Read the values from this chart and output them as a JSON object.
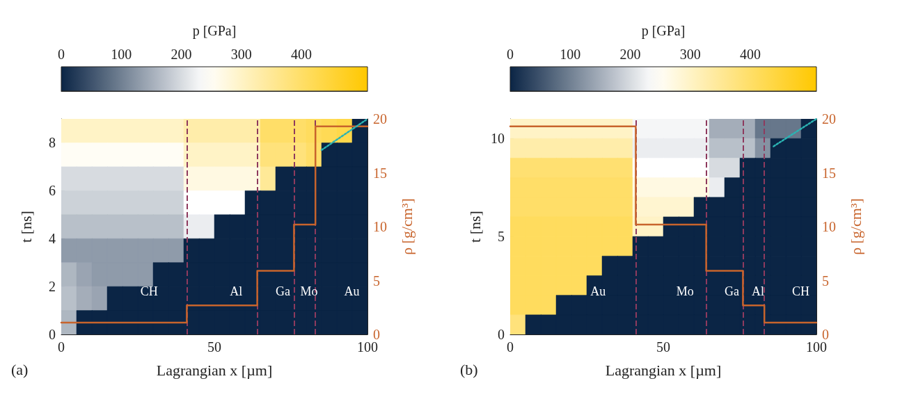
{
  "chart_data": [
    {
      "type": "heatmap",
      "xlabel": "Lagrangian x [µm]",
      "ylabel": "t [ns]",
      "y2label": "ρ [g/cm³]",
      "clabel": "p [GPa]",
      "clim": [
        0,
        510
      ],
      "cticks": [
        0,
        100,
        200,
        300,
        400
      ],
      "xlim": [
        0,
        100
      ],
      "xticks": [
        0,
        50,
        100
      ],
      "ylim": [
        0,
        9
      ],
      "yticks": [
        0,
        2,
        4,
        6,
        8
      ],
      "y2lim": [
        0,
        20
      ],
      "y2ticks": [
        0,
        5,
        10,
        15,
        20
      ],
      "x": [
        2.5,
        7.5,
        12.5,
        17.5,
        22.5,
        27.5,
        32.5,
        37.5,
        42.5,
        47.5,
        52.5,
        57.5,
        62.5,
        67.5,
        72.5,
        77.5,
        82.5,
        87.5,
        92.5,
        97.5
      ],
      "y": [
        8.5,
        7.5,
        6.5,
        5.5,
        4.5,
        3.5,
        2.5,
        1.5,
        0.5
      ],
      "cells": [
        [
          300,
          300,
          300,
          300,
          300,
          300,
          300,
          300,
          330,
          330,
          330,
          330,
          330,
          400,
          400,
          400,
          410,
          420,
          430,
          0
        ],
        [
          250,
          250,
          250,
          250,
          250,
          250,
          250,
          250,
          300,
          300,
          300,
          300,
          300,
          380,
          380,
          380,
          400,
          0,
          0,
          0
        ],
        [
          200,
          200,
          200,
          200,
          200,
          200,
          200,
          200,
          270,
          270,
          270,
          270,
          270,
          350,
          0,
          0,
          0,
          0,
          0,
          0
        ],
        [
          190,
          190,
          190,
          190,
          190,
          190,
          190,
          190,
          240,
          240,
          240,
          240,
          0,
          0,
          0,
          0,
          0,
          0,
          0,
          0
        ],
        [
          170,
          170,
          170,
          170,
          170,
          170,
          170,
          170,
          220,
          220,
          0,
          0,
          0,
          0,
          0,
          0,
          0,
          0,
          0,
          0
        ],
        [
          130,
          130,
          130,
          130,
          130,
          130,
          130,
          130,
          0,
          0,
          0,
          0,
          0,
          0,
          0,
          0,
          0,
          0,
          0,
          0
        ],
        [
          160,
          140,
          130,
          130,
          130,
          130,
          0,
          0,
          0,
          0,
          0,
          0,
          0,
          0,
          0,
          0,
          0,
          0,
          0,
          0
        ],
        [
          170,
          150,
          140,
          0,
          0,
          0,
          0,
          0,
          0,
          0,
          0,
          0,
          0,
          0,
          0,
          0,
          0,
          0,
          0,
          0
        ],
        [
          160,
          0,
          0,
          0,
          0,
          0,
          0,
          0,
          0,
          0,
          0,
          0,
          0,
          0,
          0,
          0,
          0,
          0,
          0,
          0
        ]
      ],
      "series": [
        {
          "type": "step",
          "axis": "y2",
          "color": "#c8642c",
          "line_style": "solid",
          "x": [
            0,
            41,
            64,
            76,
            83,
            100
          ],
          "values": [
            1.1,
            2.7,
            5.9,
            10.2,
            19.3,
            19.3
          ]
        },
        {
          "type": "line",
          "color": "#2bb3b3",
          "line_style": "dotted",
          "x": [
            85,
            100
          ],
          "values": [
            7.7,
            9.0
          ]
        }
      ],
      "ref_lines": [
        {
          "axis": "x",
          "value": 41,
          "color": "#8e3a5e",
          "line_style": "dashed"
        },
        {
          "axis": "x",
          "value": 64,
          "color": "#8e3a5e",
          "line_style": "dashed"
        },
        {
          "axis": "x",
          "value": 76,
          "color": "#8e3a5e",
          "line_style": "dashed"
        },
        {
          "axis": "x",
          "value": 83,
          "color": "#8e3a5e",
          "line_style": "dashed"
        }
      ],
      "annotations": [
        "(a)",
        "CH",
        "Al",
        "Ga",
        "Mo",
        "Au"
      ]
    },
    {
      "type": "heatmap",
      "xlabel": "Lagrangian x [µm]",
      "ylabel": "t [ns]",
      "y2label": "ρ [g/cm³]",
      "clabel": "p [GPa]",
      "clim": [
        0,
        510
      ],
      "cticks": [
        0,
        100,
        200,
        300,
        400
      ],
      "xlim": [
        0,
        100
      ],
      "xticks": [
        0,
        50,
        100
      ],
      "ylim": [
        0,
        11
      ],
      "yticks": [
        0,
        5,
        10
      ],
      "y2lim": [
        0,
        20
      ],
      "y2ticks": [
        0,
        5,
        10,
        15,
        20
      ],
      "x": [
        2.5,
        7.5,
        12.5,
        17.5,
        22.5,
        27.5,
        32.5,
        37.5,
        42.5,
        47.5,
        52.5,
        57.5,
        62.5,
        67.5,
        72.5,
        77.5,
        82.5,
        87.5,
        92.5,
        97.5
      ],
      "y": [
        10.5,
        9.5,
        8.5,
        7.5,
        6.5,
        5.5,
        4.5,
        3.5,
        2.5,
        1.5,
        0.5
      ],
      "cells": [
        [
          300,
          300,
          300,
          300,
          300,
          300,
          300,
          300,
          230,
          230,
          230,
          230,
          230,
          150,
          150,
          150,
          90,
          90,
          90,
          0
        ],
        [
          330,
          330,
          330,
          330,
          330,
          330,
          330,
          330,
          220,
          220,
          220,
          220,
          220,
          170,
          170,
          170,
          120,
          0,
          0,
          0
        ],
        [
          390,
          390,
          390,
          390,
          390,
          390,
          390,
          390,
          240,
          240,
          240,
          240,
          240,
          200,
          200,
          0,
          0,
          0,
          0,
          0
        ],
        [
          400,
          400,
          400,
          400,
          400,
          400,
          400,
          400,
          270,
          270,
          270,
          270,
          270,
          220,
          0,
          0,
          0,
          0,
          0,
          0
        ],
        [
          400,
          400,
          400,
          400,
          400,
          400,
          400,
          400,
          290,
          290,
          290,
          290,
          0,
          0,
          0,
          0,
          0,
          0,
          0,
          0
        ],
        [
          410,
          410,
          410,
          410,
          410,
          410,
          410,
          410,
          300,
          300,
          0,
          0,
          0,
          0,
          0,
          0,
          0,
          0,
          0,
          0
        ],
        [
          410,
          410,
          410,
          410,
          410,
          410,
          410,
          410,
          0,
          0,
          0,
          0,
          0,
          0,
          0,
          0,
          0,
          0,
          0,
          0
        ],
        [
          410,
          410,
          410,
          410,
          410,
          410,
          0,
          0,
          0,
          0,
          0,
          0,
          0,
          0,
          0,
          0,
          0,
          0,
          0,
          0
        ],
        [
          410,
          410,
          410,
          410,
          410,
          0,
          0,
          0,
          0,
          0,
          0,
          0,
          0,
          0,
          0,
          0,
          0,
          0,
          0,
          0
        ],
        [
          410,
          410,
          410,
          0,
          0,
          0,
          0,
          0,
          0,
          0,
          0,
          0,
          0,
          0,
          0,
          0,
          0,
          0,
          0,
          0
        ],
        [
          380,
          0,
          0,
          0,
          0,
          0,
          0,
          0,
          0,
          0,
          0,
          0,
          0,
          0,
          0,
          0,
          0,
          0,
          0,
          0
        ]
      ],
      "series": [
        {
          "type": "step",
          "axis": "y2",
          "color": "#c8642c",
          "line_style": "solid",
          "x": [
            0,
            41,
            64,
            76,
            83,
            100
          ],
          "values": [
            19.3,
            10.2,
            5.9,
            2.7,
            1.1,
            1.1
          ]
        },
        {
          "type": "line",
          "color": "#2bb3b3",
          "line_style": "dotted",
          "x": [
            86,
            100
          ],
          "values": [
            9.6,
            11
          ]
        }
      ],
      "ref_lines": [
        {
          "axis": "x",
          "value": 41,
          "color": "#8e3a5e",
          "line_style": "dashed"
        },
        {
          "axis": "x",
          "value": 64,
          "color": "#8e3a5e",
          "line_style": "dashed"
        },
        {
          "axis": "x",
          "value": 76,
          "color": "#8e3a5e",
          "line_style": "dashed"
        },
        {
          "axis": "x",
          "value": 83,
          "color": "#8e3a5e",
          "line_style": "dashed"
        }
      ],
      "annotations": [
        "(b)",
        "Au",
        "Mo",
        "Ga",
        "Al",
        "CH"
      ]
    }
  ]
}
